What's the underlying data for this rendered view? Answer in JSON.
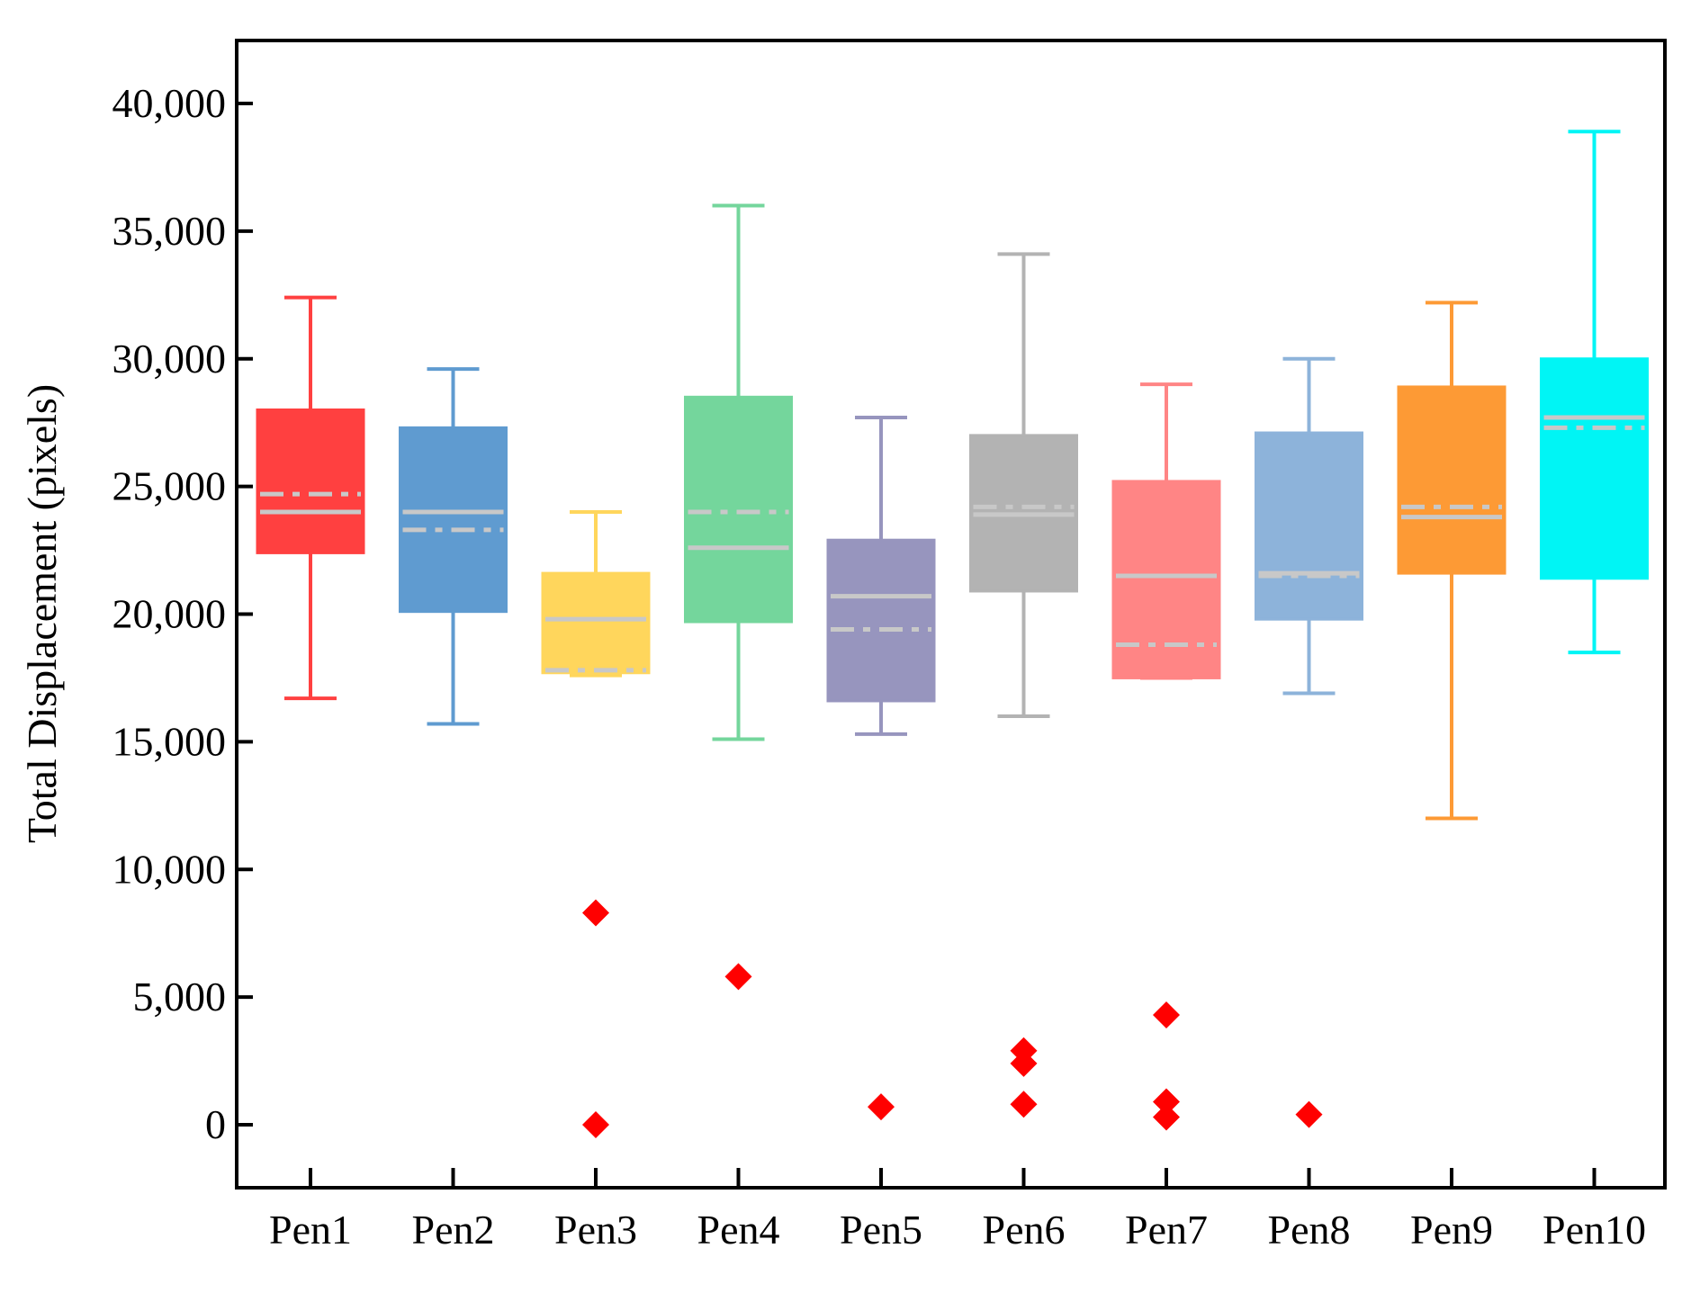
{
  "chart_data": {
    "type": "box",
    "title": "",
    "xlabel": "",
    "ylabel": "Total Displacement (pixels)",
    "ylim": [
      -2500,
      42500
    ],
    "yticks": [
      0,
      5000,
      10000,
      15000,
      20000,
      25000,
      30000,
      35000,
      40000
    ],
    "ytick_labels": [
      "0",
      "5,000",
      "10,000",
      "15,000",
      "20,000",
      "25,000",
      "30,000",
      "35,000",
      "40,000"
    ],
    "grid": false,
    "legend": "none",
    "categories": [
      "Pen1",
      "Pen2",
      "Pen3",
      "Pen4",
      "Pen5",
      "Pen6",
      "Pen7",
      "Pen8",
      "Pen9",
      "Pen10"
    ],
    "mean_line_color": "#c8c8c8",
    "median_line_color": "#c8c8c8",
    "outlier_color": "#ff0000",
    "boxes": [
      {
        "name": "Pen1",
        "color": "#ff4040",
        "whisker_low": 16700,
        "q1": 22400,
        "median": 24000,
        "mean": 24700,
        "q3": 28000,
        "whisker_high": 32400,
        "outliers": []
      },
      {
        "name": "Pen2",
        "color": "#5f9bd0",
        "whisker_low": 15700,
        "q1": 20100,
        "median": 24000,
        "mean": 23300,
        "q3": 27300,
        "whisker_high": 29600,
        "outliers": []
      },
      {
        "name": "Pen3",
        "color": "#ffd65c",
        "whisker_low": 17600,
        "q1": 17700,
        "median": 19800,
        "mean": 17800,
        "q3": 21600,
        "whisker_high": 24000,
        "outliers": [
          8300,
          0
        ]
      },
      {
        "name": "Pen4",
        "color": "#74d69c",
        "whisker_low": 15100,
        "q1": 19700,
        "median": 22600,
        "mean": 24000,
        "q3": 28500,
        "whisker_high": 36000,
        "outliers": [
          5800
        ]
      },
      {
        "name": "Pen5",
        "color": "#9795be",
        "whisker_low": 15300,
        "q1": 16600,
        "median": 20700,
        "mean": 19400,
        "q3": 22900,
        "whisker_high": 27700,
        "outliers": [
          700
        ]
      },
      {
        "name": "Pen6",
        "color": "#b3b3b3",
        "whisker_low": 16000,
        "q1": 20900,
        "median": 23900,
        "mean": 24200,
        "q3": 27000,
        "whisker_high": 34100,
        "outliers": [
          2900,
          2400,
          800
        ]
      },
      {
        "name": "Pen7",
        "color": "#ff8585",
        "whisker_low": 17500,
        "q1": 17500,
        "median": 21500,
        "mean": 18800,
        "q3": 25200,
        "whisker_high": 29000,
        "outliers": [
          4300,
          900,
          300
        ]
      },
      {
        "name": "Pen8",
        "color": "#8db3da",
        "whisker_low": 16900,
        "q1": 19800,
        "median": 21600,
        "mean": 21500,
        "q3": 27100,
        "whisker_high": 30000,
        "outliers": [
          400
        ]
      },
      {
        "name": "Pen9",
        "color": "#fd9a35",
        "whisker_low": 12000,
        "q1": 21600,
        "median": 23800,
        "mean": 24200,
        "q3": 28900,
        "whisker_high": 32200,
        "outliers": []
      },
      {
        "name": "Pen10",
        "color": "#00f5f5",
        "whisker_low": 18500,
        "q1": 21400,
        "median": 27700,
        "mean": 27300,
        "q3": 30000,
        "whisker_high": 38900,
        "outliers": []
      }
    ]
  }
}
